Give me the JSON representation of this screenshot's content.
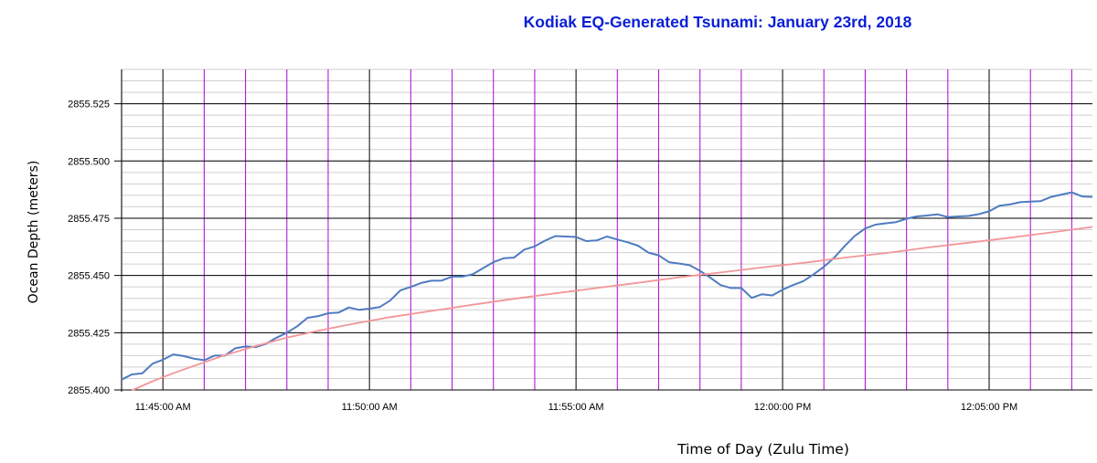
{
  "chart_data": {
    "type": "line",
    "title": "Kodiak EQ-Generated Tsunami:  January 23rd, 2018",
    "xlabel": "Time of Day (Zulu Time)",
    "ylabel": "Ocean Depth (meters)",
    "ylim": [
      2855.4,
      2855.54
    ],
    "y_ticks": [
      "2855.400",
      "2855.425",
      "2855.450",
      "2855.475",
      "2855.500",
      "2855.525"
    ],
    "x_ticks": [
      "11:45:00 AM",
      "11:50:00 AM",
      "11:55:00 AM",
      "12:00:00 PM",
      "12:05:00 PM"
    ],
    "x_unit": "minutes after 11:45:00 AM",
    "xlim": [
      -1,
      22.5
    ],
    "grid": true,
    "legend": "none",
    "colors": {
      "observed": "#4f7bc0",
      "trend": "#f2969a",
      "major_vgrid": "#000000",
      "minor_vgrid": "#b21ad6",
      "hgrid": "#000000",
      "minor_hgrid": "#cfcfcf"
    },
    "series": [
      {
        "color": "#4f7bc0",
        "x": [
          -1.0,
          -0.75,
          -0.5,
          -0.25,
          0,
          0.25,
          0.5,
          0.75,
          1,
          1.25,
          1.5,
          1.75,
          2,
          2.25,
          2.5,
          2.75,
          3,
          3.25,
          3.5,
          3.75,
          4,
          4.25,
          4.5,
          4.75,
          5,
          5.25,
          5.5,
          5.75,
          6,
          6.25,
          6.5,
          6.75,
          7,
          7.25,
          7.5,
          7.75,
          8,
          8.25,
          8.5,
          8.75,
          9,
          9.25,
          9.5,
          9.75,
          10,
          10.25,
          10.5,
          10.75,
          11,
          11.25,
          11.5,
          11.75,
          12,
          12.25,
          12.5,
          12.75,
          13,
          13.25,
          13.5,
          13.75,
          14,
          14.25,
          14.5,
          14.75,
          15,
          15.25,
          15.5,
          15.75,
          16,
          16.25,
          16.5,
          16.75,
          17,
          17.25,
          17.5,
          17.75,
          18,
          18.25,
          18.5,
          18.75,
          19,
          19.25,
          19.5,
          19.75,
          20,
          20.25,
          20.5,
          20.75,
          21,
          21.25,
          21.5,
          21.75,
          22,
          22.25,
          22.5
        ],
        "values": [
          2855.4045,
          2855.4068,
          2855.4072,
          2855.4115,
          2855.4132,
          2855.4155,
          2855.4148,
          2855.4137,
          2855.413,
          2855.415,
          2855.415,
          2855.4182,
          2855.419,
          2855.4187,
          2855.4202,
          2855.4228,
          2855.425,
          2855.4278,
          2855.4315,
          2855.4322,
          2855.4335,
          2855.4338,
          2855.436,
          2855.435,
          2855.4355,
          2855.4362,
          2855.439,
          2855.4435,
          2855.445,
          2855.4467,
          2855.4477,
          2855.4478,
          2855.4495,
          2855.4495,
          2855.4505,
          2855.4532,
          2855.4558,
          2855.4575,
          2855.4578,
          2855.4613,
          2855.4627,
          2855.4652,
          2855.4672,
          2855.467,
          2855.4668,
          2855.465,
          2855.4653,
          2855.467,
          2855.4657,
          2855.4645,
          2855.463,
          2855.46,
          2855.4588,
          2855.4558,
          2855.4552,
          2855.4545,
          2855.452,
          2855.449,
          2855.4458,
          2855.4445,
          2855.4445,
          2855.4402,
          2855.4418,
          2855.4413,
          2855.4438,
          2855.4458,
          2855.4475,
          2855.4505,
          2855.4538,
          2855.4578,
          2855.4628,
          2855.4673,
          2855.4705,
          2855.4722,
          2855.4728,
          2855.4733,
          2855.4748,
          2855.4758,
          2855.4762,
          2855.4767,
          2855.4755,
          2855.4758,
          2855.476,
          2855.4768,
          2855.478,
          2855.4805,
          2855.481,
          2855.482,
          2855.4823,
          2855.4825,
          2855.4843,
          2855.4853,
          2855.4863,
          2855.4845,
          2855.4843
        ]
      },
      {
        "color": "#f2969a",
        "x": [
          -0.75,
          -0.25,
          0.25,
          0.75,
          1.5,
          2.25,
          3,
          3.75,
          4.5,
          5.5,
          6.5,
          7.5,
          8.5,
          9.5,
          10.5,
          11.5,
          12.5,
          13.5,
          14.5,
          15.5,
          16.5,
          17.5,
          18.5,
          19.5,
          20.5,
          21.5,
          22.5
        ],
        "values": [
          2855.3998,
          2855.4038,
          2855.4073,
          2855.4105,
          2855.4152,
          2855.4192,
          2855.4228,
          2855.4258,
          2855.4285,
          2855.4318,
          2855.4345,
          2855.4372,
          2855.4398,
          2855.4422,
          2855.4445,
          2855.4468,
          2855.4492,
          2855.4513,
          2855.4535,
          2855.4555,
          2855.4578,
          2855.4598,
          2855.4622,
          2855.4643,
          2855.4665,
          2855.4688,
          2855.4712
        ]
      }
    ]
  }
}
